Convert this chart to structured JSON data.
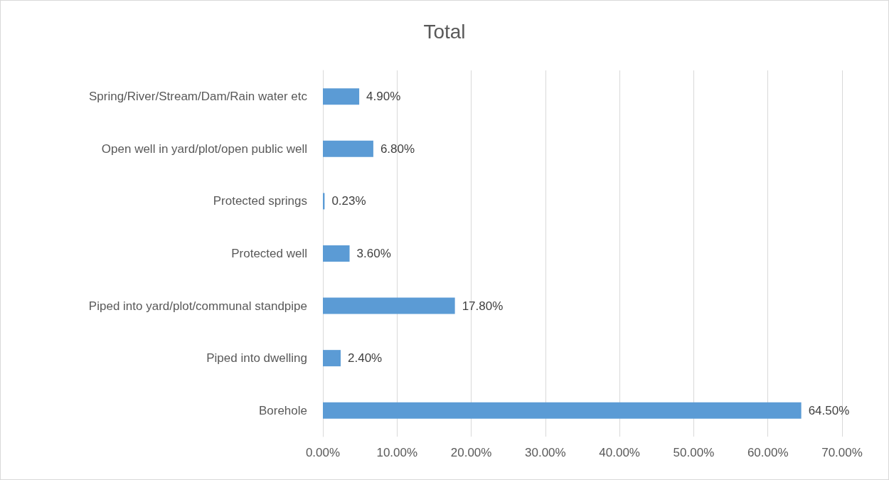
{
  "chart_data": {
    "type": "bar",
    "orientation": "horizontal",
    "title": "Total",
    "categories": [
      "Spring/River/Stream/Dam/Rain water etc",
      "Open well in yard/plot/open public well",
      "Protected springs",
      "Protected well",
      "Piped into yard/plot/communal standpipe",
      "Piped into dwelling",
      "Borehole"
    ],
    "values": [
      4.9,
      6.8,
      0.23,
      3.6,
      17.8,
      2.4,
      64.5
    ],
    "value_labels": [
      "4.90%",
      "6.80%",
      "0.23%",
      "3.60%",
      "17.80%",
      "2.40%",
      "64.50%"
    ],
    "color": "#5b9bd5",
    "xlim": [
      0,
      70
    ],
    "xticks": [
      {
        "value": 0,
        "label": "0.00%"
      },
      {
        "value": 10,
        "label": "10.00%"
      },
      {
        "value": 20,
        "label": "20.00%"
      },
      {
        "value": 30,
        "label": "30.00%"
      },
      {
        "value": 40,
        "label": "40.00%"
      },
      {
        "value": 50,
        "label": "50.00%"
      },
      {
        "value": 60,
        "label": "60.00%"
      },
      {
        "value": 70,
        "label": "70.00%"
      }
    ],
    "grid": "x"
  }
}
